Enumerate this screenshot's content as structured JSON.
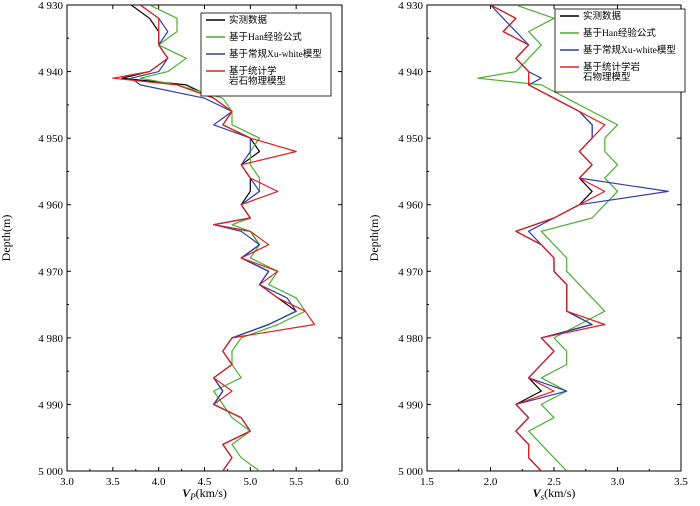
{
  "chart_data": [
    {
      "type": "line",
      "xlabel_main": "V",
      "xlabel_sub": "P",
      "xlabel_unit": "(km/s)",
      "ylabel": "Depth(m)",
      "xlim": [
        3.0,
        6.0
      ],
      "ylim": [
        4930,
        5000
      ],
      "y_inverted": true,
      "xticks": [
        3.0,
        3.5,
        4.0,
        4.5,
        5.0,
        5.5,
        6.0
      ],
      "xtick_labels": [
        "3.0",
        "3.5",
        "4.0",
        "4.5",
        "5.0",
        "5.5",
        "6.0"
      ],
      "yticks": [
        4930,
        4940,
        4950,
        4960,
        4970,
        4980,
        4990,
        5000
      ],
      "ytick_labels": [
        "4 930",
        "4 940",
        "4 950",
        "4 960",
        "4 970",
        "4 980",
        "4 990",
        "5 000"
      ],
      "legend_position": "top-right",
      "series": [
        {
          "name": "实测数据",
          "color": "#000000",
          "depth": [
            4930,
            4932,
            4934,
            4936,
            4938,
            4940,
            4941,
            4942,
            4944,
            4946,
            4948,
            4950,
            4952,
            4954,
            4956,
            4958,
            4960,
            4962,
            4963,
            4964,
            4966,
            4968,
            4970,
            4972,
            4974,
            4976,
            4978,
            4980,
            4982,
            4984,
            4986,
            4988,
            4990,
            4992,
            4994,
            4996,
            4998,
            5000
          ],
          "values": [
            3.7,
            3.9,
            4.0,
            4.0,
            4.1,
            3.9,
            3.6,
            4.3,
            4.6,
            4.8,
            4.7,
            5.0,
            5.1,
            4.9,
            5.0,
            5.0,
            4.9,
            5.0,
            4.6,
            5.0,
            5.1,
            4.9,
            5.2,
            5.1,
            5.3,
            5.5,
            5.2,
            4.8,
            4.7,
            4.8,
            4.6,
            4.7,
            4.6,
            4.9,
            5.0,
            4.7,
            4.8,
            4.7
          ]
        },
        {
          "name": "基于Han经验公式",
          "color": "#4caf30",
          "depth": [
            4930,
            4932,
            4934,
            4936,
            4938,
            4940,
            4941,
            4942,
            4944,
            4946,
            4948,
            4950,
            4952,
            4954,
            4956,
            4958,
            4960,
            4962,
            4963,
            4964,
            4966,
            4968,
            4970,
            4972,
            4974,
            4976,
            4978,
            4980,
            4982,
            4984,
            4986,
            4988,
            4990,
            4992,
            4994,
            4996,
            4998,
            5000
          ],
          "values": [
            3.9,
            4.2,
            4.2,
            4.0,
            4.3,
            4.1,
            3.8,
            4.2,
            4.7,
            4.8,
            4.8,
            5.1,
            5.0,
            5.0,
            5.1,
            5.1,
            4.9,
            5.0,
            4.8,
            5.0,
            5.1,
            5.0,
            5.3,
            5.2,
            5.5,
            5.6,
            5.3,
            4.9,
            4.8,
            4.8,
            4.9,
            4.6,
            4.7,
            4.8,
            5.0,
            4.8,
            4.9,
            5.1
          ]
        },
        {
          "name": "基于常规Xu-white模型",
          "color": "#2f3fae",
          "depth": [
            4930,
            4932,
            4934,
            4936,
            4938,
            4940,
            4941,
            4942,
            4944,
            4946,
            4948,
            4950,
            4952,
            4954,
            4956,
            4958,
            4960,
            4962,
            4963,
            4964,
            4966,
            4968,
            4970,
            4972,
            4974,
            4976,
            4978,
            4980,
            4982,
            4984,
            4986,
            4988,
            4990,
            4992,
            4994,
            4996,
            4998,
            5000
          ],
          "values": [
            3.8,
            4.0,
            4.1,
            4.0,
            4.1,
            4.0,
            3.7,
            3.8,
            4.5,
            4.8,
            4.6,
            5.0,
            5.0,
            4.9,
            5.0,
            5.1,
            4.9,
            5.0,
            4.6,
            4.9,
            5.1,
            4.9,
            5.2,
            5.1,
            5.4,
            5.5,
            5.2,
            4.8,
            4.7,
            4.8,
            4.6,
            4.7,
            4.6,
            4.9,
            5.0,
            4.7,
            4.8,
            4.7
          ]
        },
        {
          "name": "基于统计学岩石物理模型",
          "name_line1": "基于统计学",
          "name_line2": "岩石物理模型",
          "color": "#e02020",
          "depth": [
            4930,
            4932,
            4934,
            4936,
            4938,
            4940,
            4941,
            4942,
            4944,
            4946,
            4948,
            4950,
            4952,
            4954,
            4956,
            4958,
            4960,
            4962,
            4963,
            4964,
            4966,
            4968,
            4970,
            4972,
            4974,
            4976,
            4978,
            4980,
            4982,
            4984,
            4986,
            4988,
            4990,
            4992,
            4994,
            4996,
            4998,
            5000
          ],
          "values": [
            3.8,
            4.0,
            4.0,
            4.0,
            4.1,
            3.9,
            3.5,
            4.2,
            4.6,
            4.8,
            4.7,
            5.0,
            5.5,
            4.9,
            5.0,
            5.3,
            4.9,
            5.0,
            4.6,
            5.0,
            5.2,
            4.9,
            5.3,
            5.1,
            5.3,
            5.6,
            5.7,
            4.8,
            4.7,
            4.8,
            4.6,
            4.8,
            4.6,
            4.9,
            5.0,
            4.7,
            4.8,
            4.7
          ]
        }
      ]
    },
    {
      "type": "line",
      "xlabel_main": "V",
      "xlabel_sub": "s",
      "xlabel_unit": "(km/s)",
      "ylabel": "Depth(m)",
      "xlim": [
        1.5,
        3.5
      ],
      "ylim": [
        4930,
        5000
      ],
      "y_inverted": true,
      "xticks": [
        1.5,
        2.0,
        2.5,
        3.0,
        3.5
      ],
      "xtick_labels": [
        "1.5",
        "2.0",
        "2.5",
        "3.0",
        "3.5"
      ],
      "yticks": [
        4930,
        4940,
        4950,
        4960,
        4970,
        4980,
        4990,
        5000
      ],
      "ytick_labels": [
        "4 930",
        "4 940",
        "4 950",
        "4 960",
        "4 970",
        "4 980",
        "4 990",
        "5 000"
      ],
      "legend_position": "top-right",
      "series": [
        {
          "name": "实测数据",
          "color": "#000000",
          "depth": [
            4930,
            4932,
            4934,
            4936,
            4938,
            4940,
            4941,
            4942,
            4944,
            4946,
            4948,
            4950,
            4952,
            4954,
            4956,
            4958,
            4960,
            4962,
            4964,
            4966,
            4968,
            4970,
            4972,
            4974,
            4976,
            4978,
            4980,
            4982,
            4984,
            4986,
            4988,
            4990,
            4992,
            4994,
            4996,
            4998,
            5000
          ],
          "values": [
            2.0,
            2.2,
            2.1,
            2.3,
            2.2,
            2.3,
            2.3,
            2.3,
            2.5,
            2.7,
            2.8,
            2.8,
            2.7,
            2.8,
            2.7,
            2.8,
            2.7,
            2.5,
            2.2,
            2.4,
            2.5,
            2.5,
            2.6,
            2.6,
            2.6,
            2.8,
            2.4,
            2.5,
            2.4,
            2.3,
            2.4,
            2.2,
            2.3,
            2.2,
            2.3,
            2.3,
            2.4
          ]
        },
        {
          "name": "基于Han经验公式",
          "color": "#4caf30",
          "depth": [
            4930,
            4932,
            4934,
            4936,
            4938,
            4940,
            4941,
            4942,
            4944,
            4946,
            4948,
            4950,
            4952,
            4954,
            4956,
            4958,
            4960,
            4962,
            4964,
            4966,
            4968,
            4970,
            4972,
            4974,
            4976,
            4978,
            4980,
            4982,
            4984,
            4986,
            4988,
            4990,
            4992,
            4994,
            4996,
            4998,
            5000
          ],
          "values": [
            2.2,
            2.5,
            2.3,
            2.4,
            2.3,
            2.2,
            1.9,
            2.4,
            2.6,
            2.8,
            3.0,
            2.9,
            2.9,
            3.0,
            2.9,
            3.0,
            2.9,
            2.8,
            2.4,
            2.5,
            2.6,
            2.6,
            2.7,
            2.8,
            2.9,
            2.7,
            2.5,
            2.6,
            2.6,
            2.4,
            2.6,
            2.4,
            2.5,
            2.3,
            2.4,
            2.5,
            2.6
          ]
        },
        {
          "name": "基于常规Xu-white模型",
          "color": "#2f3fae",
          "depth": [
            4930,
            4932,
            4934,
            4936,
            4938,
            4940,
            4941,
            4942,
            4944,
            4946,
            4948,
            4950,
            4952,
            4954,
            4956,
            4958,
            4960,
            4962,
            4964,
            4966,
            4968,
            4970,
            4972,
            4974,
            4976,
            4978,
            4980,
            4982,
            4984,
            4986,
            4988,
            4990,
            4992,
            4994,
            4996,
            4998,
            5000
          ],
          "values": [
            2.0,
            2.1,
            2.2,
            2.3,
            2.2,
            2.3,
            2.4,
            2.3,
            2.5,
            2.7,
            2.8,
            2.8,
            2.7,
            2.8,
            2.7,
            3.4,
            2.7,
            2.5,
            2.3,
            2.4,
            2.5,
            2.5,
            2.6,
            2.6,
            2.6,
            2.8,
            2.4,
            2.5,
            2.4,
            2.3,
            2.6,
            2.2,
            2.3,
            2.2,
            2.3,
            2.3,
            2.4
          ]
        },
        {
          "name": "基于统计学岩石物理模型",
          "name_line1": "基于统计学岩",
          "name_line2": "石物理模型",
          "color": "#e02020",
          "depth": [
            4930,
            4932,
            4934,
            4936,
            4938,
            4940,
            4941,
            4942,
            4944,
            4946,
            4948,
            4950,
            4952,
            4954,
            4956,
            4958,
            4960,
            4962,
            4964,
            4966,
            4968,
            4970,
            4972,
            4974,
            4976,
            4978,
            4980,
            4982,
            4984,
            4986,
            4988,
            4990,
            4992,
            4994,
            4996,
            4998,
            5000
          ],
          "values": [
            2.0,
            2.2,
            2.1,
            2.3,
            2.2,
            2.3,
            2.3,
            2.3,
            2.5,
            2.7,
            2.9,
            2.8,
            2.7,
            2.8,
            2.7,
            2.9,
            2.7,
            2.5,
            2.2,
            2.4,
            2.5,
            2.5,
            2.6,
            2.6,
            2.6,
            2.9,
            2.4,
            2.5,
            2.4,
            2.3,
            2.5,
            2.2,
            2.3,
            2.2,
            2.3,
            2.3,
            2.4
          ]
        }
      ]
    }
  ]
}
